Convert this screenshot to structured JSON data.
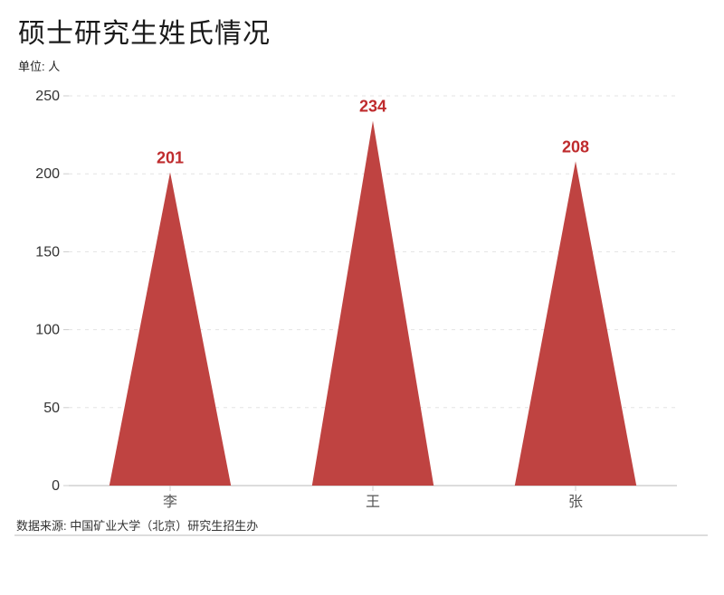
{
  "header": {
    "title": "硕士研究生姓氏情况",
    "unit": "单位: 人"
  },
  "footer": {
    "source": "数据来源: 中国矿业大学（北京）研究生招生办"
  },
  "chart_data": {
    "type": "bar",
    "bar_shape": "triangle",
    "title": "硕士研究生姓氏情况",
    "unit_label": "单位: 人",
    "categories": [
      "李",
      "王",
      "张"
    ],
    "values": [
      201,
      234,
      208
    ],
    "ylim": [
      0,
      250
    ],
    "yticks": [
      0,
      50,
      100,
      150,
      200,
      250
    ],
    "grid": "horizontal-dashed",
    "legend": "none",
    "source": "数据来源: 中国矿业大学（北京）研究生招生办",
    "colors": {
      "triangle_fill": "#bf4341",
      "value_label": "#bf2b2d",
      "grid_line": "#e3e3e3",
      "axis_line": "#dcdcdc",
      "tick": "#cccccc",
      "y_label": "#333333",
      "x_label": "#555555"
    }
  }
}
